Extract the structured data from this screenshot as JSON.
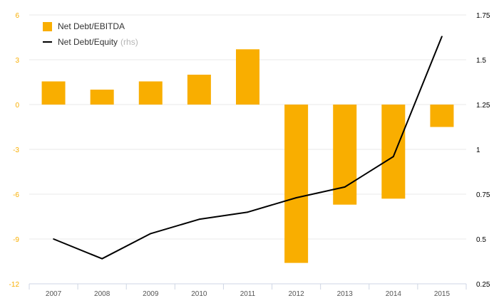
{
  "chart_data": {
    "type": "bar",
    "categories": [
      "2007",
      "2008",
      "2009",
      "2010",
      "2011",
      "2012",
      "2013",
      "2014",
      "2015"
    ],
    "series": [
      {
        "name": "Net Debt/EBITDA",
        "kind": "bar",
        "axis": "left",
        "color": "#F9AE00",
        "values": [
          1.55,
          1.0,
          1.55,
          2.0,
          3.7,
          -10.6,
          -6.7,
          -6.3,
          -1.5
        ]
      },
      {
        "name": "Net Debt/Equity",
        "kind": "line",
        "axis": "right",
        "color": "#000000",
        "values": [
          0.5,
          0.39,
          0.53,
          0.61,
          0.65,
          0.73,
          0.79,
          0.96,
          1.63
        ]
      }
    ],
    "legend_suffix": "(rhs)",
    "y_left": {
      "ylim": [
        -12,
        6
      ],
      "ticks": [
        "6",
        "3",
        "0",
        "-3",
        "-6",
        "-9",
        "-12"
      ],
      "color": "#F9AE00"
    },
    "y_right": {
      "ylim": [
        0.25,
        1.75
      ],
      "ticks": [
        "1.75",
        "1.5",
        "1.25",
        "1",
        "0.75",
        "0.5",
        "0.25"
      ],
      "color": "#000000"
    },
    "grid": true,
    "legend_position": "top-left"
  }
}
